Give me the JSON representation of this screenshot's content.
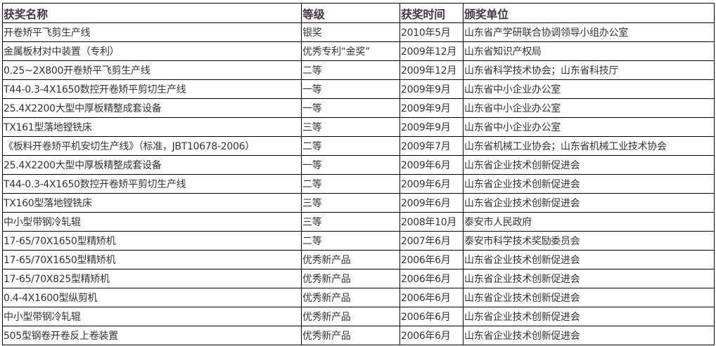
{
  "table": {
    "headers": [
      "获奖名称",
      "等级",
      "获奖时间",
      "颁奖单位"
    ],
    "rows": [
      [
        "开卷矫平飞剪生产线",
        "银奖",
        "2010年5月",
        "山东省产学研联合协调领导小组办公室"
      ],
      [
        "金属板材对中装置（专利）",
        "优秀专利“金奖”",
        "2009年12月",
        "山东省知识产权局"
      ],
      [
        "0.25~2X800开卷矫平飞剪生产线",
        "二等",
        "2009年12月",
        "山东省科学技术协会；山东省科技厅"
      ],
      [
        "T44-0.3-4X1650数控开卷矫平剪切生产线",
        "一等",
        "2009年9月",
        "山东省中小企业办公室"
      ],
      [
        "25.4X2200大型中厚板精整成套设备",
        "一等",
        "2009年9月",
        "山东省中小企业办公室"
      ],
      [
        "TX161型落地镗铣床",
        "三等",
        "2009年9月",
        "山东省中小企业办公室"
      ],
      [
        "《板料开卷矫平机安切生产线》（标准，JBT10678-2006）",
        "二等",
        "2009年7月",
        "山东省机械工业协会；山东省机械工业技术协会"
      ],
      [
        "25.4X2200大型中厚板精整成套设备",
        "一等",
        "2009年6月",
        "山东省企业技术创新促进会"
      ],
      [
        "T44-0.3-4X1650数控开卷矫平剪切生产线",
        "二等",
        "2009年6月",
        "山东省企业技术创新促进会"
      ],
      [
        "TX160型落地镗铣床",
        "三等",
        "2009年6月",
        "山东省企业技术创新促进会"
      ],
      [
        "中小型带钢冷轧辊",
        "三等",
        "2008年10月",
        "泰安市人民政府"
      ],
      [
        "17-65/70X1650型精矫机",
        "二等",
        "2007年6月",
        "泰安市科学技术奖励委员会"
      ],
      [
        "17-65/70X1650型精矫机",
        "优秀新产品",
        "2006年6月",
        "山东省企业技术创新促进会"
      ],
      [
        "17-65/70X825型精矫机",
        "优秀新产品",
        "2006年6月",
        "山东省企业技术创新促进会"
      ],
      [
        "0.4-4X1600型纵剪机",
        "优秀新产品",
        "2006年6月",
        "山东省企业技术创新促进会"
      ],
      [
        "中小型带钢冷轧辊",
        "优秀新产品",
        "2006年6月",
        "山东省企业技术创新促进会"
      ],
      [
        "505型钢卷开卷反上卷装置",
        "优秀新产品",
        "2006年6月",
        "山东省企业技术创新促进会"
      ]
    ]
  }
}
